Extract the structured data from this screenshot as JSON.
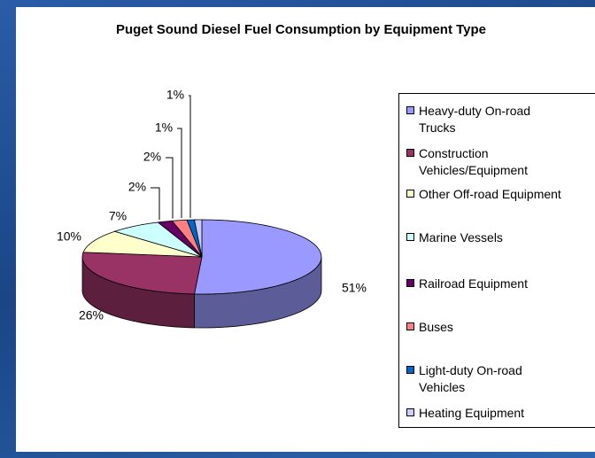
{
  "chart_data": {
    "type": "pie3d",
    "title": "Puget Sound Diesel Fuel Consumption by Equipment Type",
    "categories": [
      "Heavy-duty On-road Trucks",
      "Construction Vehicles/Equipment",
      "Other Off-road Equipment",
      "Marine Vessels",
      "Railroad Equipment",
      "Buses",
      "Light-duty On-road Vehicles",
      "Heating Equipment"
    ],
    "values": [
      51,
      26,
      10,
      7,
      2,
      2,
      1,
      1
    ],
    "value_labels": [
      "51%",
      "26%",
      "10%",
      "7%",
      "2%",
      "2%",
      "1%",
      "1%"
    ],
    "colors": [
      "#9999ff",
      "#993366",
      "#ffffcc",
      "#ccffff",
      "#660066",
      "#ff8080",
      "#0066cc",
      "#ccccff"
    ],
    "legend": "right"
  }
}
